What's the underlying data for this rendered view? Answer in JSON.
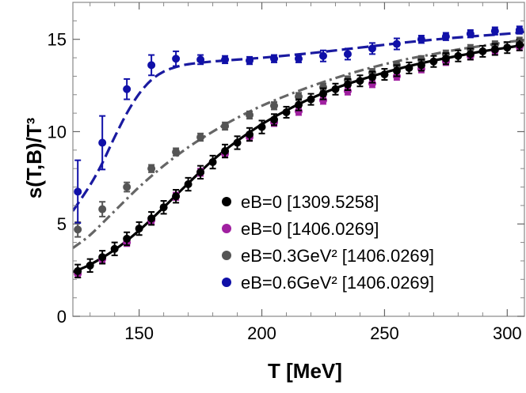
{
  "chart_data": {
    "type": "scatter",
    "title": "",
    "xlabel": "T [MeV]",
    "ylabel": "s(T,B)/T³",
    "xlim": [
      123,
      307
    ],
    "ylim": [
      0,
      17
    ],
    "xticks": [
      150,
      200,
      250,
      300
    ],
    "yticks": [
      0,
      5,
      10,
      15
    ],
    "legend_position": "bottom-right",
    "series": [
      {
        "name": "eB=0 [1309.5258]",
        "color": "#000000",
        "x": [
          125,
          130,
          135,
          140,
          145,
          150,
          155,
          160,
          165,
          170,
          175,
          180,
          185,
          190,
          195,
          200,
          205,
          210,
          215,
          220,
          225,
          230,
          235,
          240,
          245,
          250,
          255,
          260,
          265,
          270,
          275,
          280,
          285,
          290,
          295,
          300,
          305
        ],
        "y": [
          2.45,
          2.75,
          3.2,
          3.65,
          4.2,
          4.75,
          5.3,
          5.9,
          6.5,
          7.15,
          7.8,
          8.35,
          8.95,
          9.4,
          9.85,
          10.25,
          10.65,
          11.05,
          11.45,
          11.75,
          12.05,
          12.3,
          12.55,
          12.75,
          12.95,
          13.1,
          13.3,
          13.45,
          13.6,
          13.8,
          13.95,
          14.1,
          14.2,
          14.35,
          14.45,
          14.55,
          14.7
        ],
        "err": [
          0.35,
          0.35,
          0.35,
          0.35,
          0.35,
          0.35,
          0.35,
          0.35,
          0.35,
          0.35,
          0.35,
          0.35,
          0.35,
          0.35,
          0.35,
          0.35,
          0.3,
          0.3,
          0.3,
          0.3,
          0.3,
          0.3,
          0.3,
          0.3,
          0.3,
          0.3,
          0.3,
          0.3,
          0.3,
          0.3,
          0.3,
          0.3,
          0.3,
          0.3,
          0.3,
          0.3,
          0.3
        ]
      },
      {
        "name": "eB=0 [1406.0269]",
        "color": "#a020a0",
        "x": [
          125,
          135,
          145,
          155,
          165,
          175,
          185,
          195,
          205,
          215,
          225,
          235,
          245,
          255,
          265,
          275,
          285,
          295,
          305
        ],
        "y": [
          2.3,
          3.1,
          4.0,
          5.2,
          6.5,
          7.8,
          8.8,
          9.7,
          10.5,
          11.1,
          11.7,
          12.2,
          12.6,
          13.0,
          13.4,
          13.8,
          14.1,
          14.4,
          14.6
        ],
        "err": [
          0.2,
          0.2,
          0.2,
          0.2,
          0.2,
          0.2,
          0.2,
          0.2,
          0.2,
          0.2,
          0.2,
          0.2,
          0.2,
          0.2,
          0.2,
          0.2,
          0.2,
          0.2,
          0.2
        ]
      },
      {
        "name": "eB=0.3GeV² [1406.0269]",
        "color": "#555555",
        "x": [
          125,
          135,
          145,
          155,
          165,
          175,
          185,
          195,
          205,
          215,
          225,
          235,
          245,
          255,
          265,
          275,
          285,
          295,
          305
        ],
        "y": [
          4.7,
          5.8,
          7.0,
          8.0,
          8.9,
          9.7,
          10.3,
          10.9,
          11.4,
          11.9,
          12.4,
          12.8,
          13.2,
          13.6,
          13.9,
          14.2,
          14.5,
          14.7,
          14.9
        ],
        "err": [
          0.4,
          0.4,
          0.25,
          0.2,
          0.2,
          0.2,
          0.2,
          0.2,
          0.2,
          0.2,
          0.2,
          0.2,
          0.2,
          0.2,
          0.2,
          0.2,
          0.2,
          0.2,
          0.2
        ]
      },
      {
        "name": "eB=0.6GeV² [1406.0269]",
        "color": "#1010a8",
        "x": [
          125,
          135,
          145,
          155,
          165,
          175,
          185,
          195,
          205,
          215,
          225,
          235,
          245,
          255,
          265,
          275,
          285,
          295,
          305
        ],
        "y": [
          6.75,
          9.4,
          12.3,
          13.6,
          13.95,
          13.9,
          13.9,
          13.85,
          13.95,
          13.95,
          14.1,
          14.2,
          14.5,
          14.75,
          15.0,
          15.15,
          15.3,
          15.45,
          15.5
        ],
        "err": [
          1.7,
          1.45,
          0.55,
          0.55,
          0.4,
          0.25,
          0.2,
          0.2,
          0.2,
          0.2,
          0.3,
          0.3,
          0.3,
          0.3,
          0.2,
          0.2,
          0.2,
          0.2,
          0.2
        ]
      }
    ],
    "curves": [
      {
        "style": "solid",
        "color": "#000000",
        "x": [
          123,
          130,
          140,
          150,
          160,
          170,
          180,
          190,
          200,
          210,
          220,
          230,
          240,
          250,
          260,
          270,
          280,
          290,
          300,
          307
        ],
        "y": [
          2.4,
          2.8,
          3.6,
          4.65,
          5.9,
          7.2,
          8.45,
          9.5,
          10.4,
          11.15,
          11.8,
          12.35,
          12.8,
          13.2,
          13.55,
          13.85,
          14.1,
          14.35,
          14.55,
          14.7
        ]
      },
      {
        "style": "dashdot",
        "color": "#666666",
        "x": [
          123,
          130,
          140,
          150,
          160,
          170,
          180,
          190,
          200,
          210,
          220,
          230,
          240,
          250,
          260,
          270,
          280,
          290,
          300,
          307
        ],
        "y": [
          3.7,
          4.4,
          5.7,
          7.0,
          8.15,
          9.15,
          10.0,
          10.75,
          11.4,
          11.95,
          12.45,
          12.9,
          13.3,
          13.65,
          13.95,
          14.2,
          14.45,
          14.65,
          14.85,
          14.95
        ]
      },
      {
        "style": "dashed",
        "color": "#1a1aa0",
        "x": [
          123,
          130,
          135,
          140,
          145,
          150,
          155,
          160,
          165,
          170,
          180,
          190,
          200,
          220,
          240,
          260,
          280,
          300,
          307
        ],
        "y": [
          5.7,
          7.1,
          8.3,
          9.7,
          11.0,
          12.05,
          12.8,
          13.25,
          13.5,
          13.65,
          13.8,
          13.9,
          14.0,
          14.25,
          14.55,
          14.85,
          15.1,
          15.3,
          15.4
        ]
      }
    ]
  }
}
